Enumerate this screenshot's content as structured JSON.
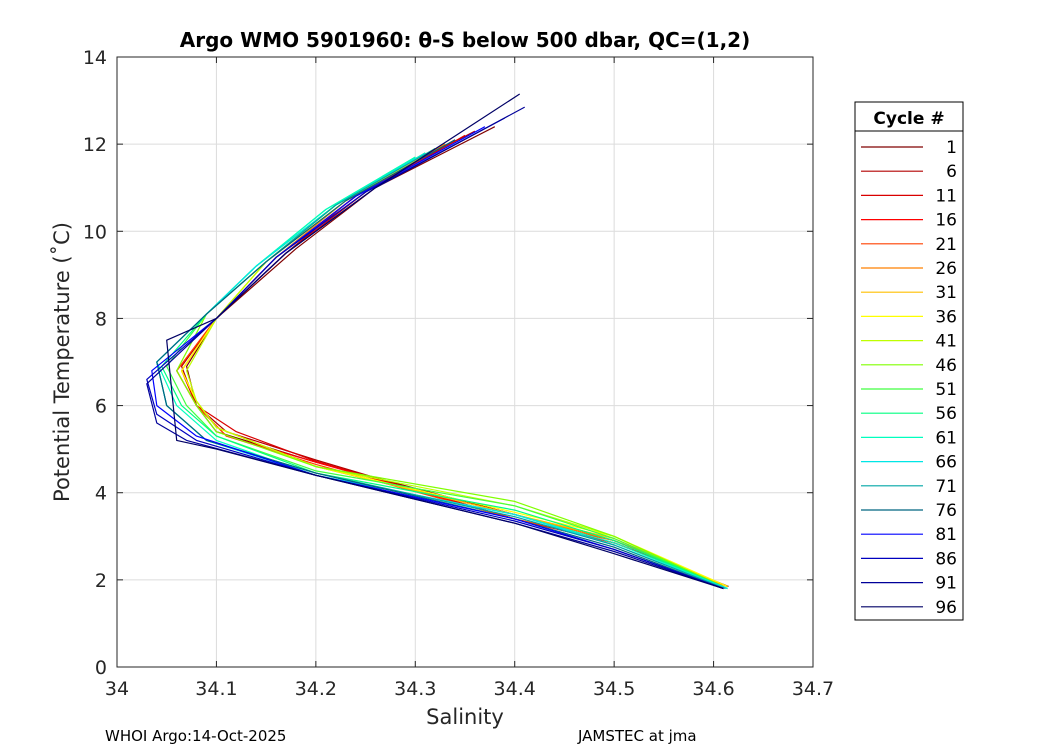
{
  "chart_data": {
    "type": "line",
    "title": "Argo WMO 5901960: θ-S below 500 dbar,  QC=(1,2)",
    "xlabel": "Salinity",
    "ylabel": "Potential Temperature (˚C)",
    "xlim": [
      34.0,
      34.7
    ],
    "ylim": [
      0,
      14
    ],
    "xticks": [
      34,
      34.1,
      34.2,
      34.3,
      34.4,
      34.5,
      34.6,
      34.7
    ],
    "xtick_labels": [
      "34",
      "34.1",
      "34.2",
      "34.3",
      "34.4",
      "34.5",
      "34.6",
      "34.7"
    ],
    "yticks": [
      0,
      2,
      4,
      6,
      8,
      10,
      12,
      14
    ],
    "ytick_labels": [
      "0",
      "2",
      "4",
      "6",
      "8",
      "10",
      "12",
      "14"
    ],
    "grid": true,
    "legend_placement": "outside-right",
    "legend_title": "Cycle #",
    "series": [
      {
        "name": "1",
        "color": "#800000",
        "points": [
          [
            34.38,
            12.4
          ],
          [
            34.26,
            11.0
          ],
          [
            34.18,
            9.6
          ],
          [
            34.1,
            8.0
          ],
          [
            34.07,
            6.9
          ],
          [
            34.08,
            6.0
          ],
          [
            34.1,
            5.4
          ],
          [
            34.2,
            4.7
          ],
          [
            34.4,
            3.5
          ],
          [
            34.5,
            2.9
          ],
          [
            34.615,
            1.85
          ]
        ]
      },
      {
        "name": "6",
        "color": "#b30000",
        "points": [
          [
            34.36,
            12.3
          ],
          [
            34.25,
            11.0
          ],
          [
            34.17,
            9.5
          ],
          [
            34.1,
            8.0
          ],
          [
            34.065,
            6.9
          ],
          [
            34.08,
            6.0
          ],
          [
            34.11,
            5.4
          ],
          [
            34.2,
            4.75
          ],
          [
            34.4,
            3.4
          ],
          [
            34.5,
            2.85
          ],
          [
            34.614,
            1.85
          ]
        ]
      },
      {
        "name": "11",
        "color": "#d90000",
        "points": [
          [
            34.35,
            12.2
          ],
          [
            34.25,
            10.9
          ],
          [
            34.17,
            9.5
          ],
          [
            34.1,
            8.0
          ],
          [
            34.065,
            6.8
          ],
          [
            34.08,
            6.0
          ],
          [
            34.12,
            5.4
          ],
          [
            34.2,
            4.72
          ],
          [
            34.4,
            3.4
          ],
          [
            34.5,
            2.85
          ],
          [
            34.614,
            1.85
          ]
        ]
      },
      {
        "name": "16",
        "color": "#ff0000",
        "points": [
          [
            34.34,
            12.1
          ],
          [
            34.24,
            10.8
          ],
          [
            34.16,
            9.4
          ],
          [
            34.1,
            8.0
          ],
          [
            34.06,
            6.8
          ],
          [
            34.08,
            6.0
          ],
          [
            34.11,
            5.3
          ],
          [
            34.2,
            4.7
          ],
          [
            34.4,
            3.4
          ],
          [
            34.5,
            2.85
          ],
          [
            34.614,
            1.85
          ]
        ]
      },
      {
        "name": "21",
        "color": "#ff4000",
        "points": [
          [
            34.33,
            12.0
          ],
          [
            34.24,
            10.8
          ],
          [
            34.16,
            9.4
          ],
          [
            34.1,
            8.0
          ],
          [
            34.06,
            6.8
          ],
          [
            34.08,
            6.0
          ],
          [
            34.11,
            5.3
          ],
          [
            34.2,
            4.65
          ],
          [
            34.4,
            3.4
          ],
          [
            34.5,
            2.9
          ],
          [
            34.614,
            1.85
          ]
        ]
      },
      {
        "name": "26",
        "color": "#ff8000",
        "points": [
          [
            34.33,
            12.0
          ],
          [
            34.23,
            10.7
          ],
          [
            34.16,
            9.4
          ],
          [
            34.1,
            8.0
          ],
          [
            34.065,
            6.8
          ],
          [
            34.08,
            6.1
          ],
          [
            34.1,
            5.5
          ],
          [
            34.2,
            4.6
          ],
          [
            34.4,
            3.5
          ],
          [
            34.5,
            2.9
          ],
          [
            34.614,
            1.85
          ]
        ]
      },
      {
        "name": "31",
        "color": "#ffbf00",
        "points": [
          [
            34.32,
            11.9
          ],
          [
            34.23,
            10.7
          ],
          [
            34.15,
            9.3
          ],
          [
            34.1,
            8.0
          ],
          [
            34.065,
            6.8
          ],
          [
            34.08,
            6.1
          ],
          [
            34.1,
            5.5
          ],
          [
            34.2,
            4.6
          ],
          [
            34.4,
            3.5
          ],
          [
            34.5,
            2.95
          ],
          [
            34.614,
            1.85
          ]
        ]
      },
      {
        "name": "36",
        "color": "#ffff00",
        "points": [
          [
            34.32,
            11.9
          ],
          [
            34.23,
            10.7
          ],
          [
            34.15,
            9.3
          ],
          [
            34.1,
            8.0
          ],
          [
            34.065,
            6.8
          ],
          [
            34.08,
            6.1
          ],
          [
            34.1,
            5.5
          ],
          [
            34.2,
            4.6
          ],
          [
            34.4,
            3.55
          ],
          [
            34.5,
            3.0
          ],
          [
            34.614,
            1.85
          ]
        ]
      },
      {
        "name": "41",
        "color": "#bfff00",
        "points": [
          [
            34.31,
            11.8
          ],
          [
            34.22,
            10.6
          ],
          [
            34.15,
            9.3
          ],
          [
            34.1,
            8.0
          ],
          [
            34.07,
            6.8
          ],
          [
            34.08,
            6.1
          ],
          [
            34.1,
            5.5
          ],
          [
            34.2,
            4.6
          ],
          [
            34.4,
            3.7
          ],
          [
            34.5,
            3.0
          ],
          [
            34.614,
            1.8
          ]
        ]
      },
      {
        "name": "46",
        "color": "#80ff00",
        "points": [
          [
            34.31,
            11.8
          ],
          [
            34.22,
            10.6
          ],
          [
            34.15,
            9.3
          ],
          [
            34.09,
            8.1
          ],
          [
            34.06,
            6.8
          ],
          [
            34.08,
            6.0
          ],
          [
            34.1,
            5.4
          ],
          [
            34.2,
            4.6
          ],
          [
            34.4,
            3.8
          ],
          [
            34.5,
            3.0
          ],
          [
            34.614,
            1.8
          ]
        ]
      },
      {
        "name": "51",
        "color": "#40ff40",
        "points": [
          [
            34.3,
            11.7
          ],
          [
            34.22,
            10.6
          ],
          [
            34.14,
            9.2
          ],
          [
            34.09,
            8.1
          ],
          [
            34.05,
            6.9
          ],
          [
            34.07,
            6.0
          ],
          [
            34.1,
            5.3
          ],
          [
            34.2,
            4.5
          ],
          [
            34.4,
            3.7
          ],
          [
            34.5,
            2.95
          ],
          [
            34.614,
            1.8
          ]
        ]
      },
      {
        "name": "56",
        "color": "#00ff80",
        "points": [
          [
            34.3,
            11.7
          ],
          [
            34.21,
            10.5
          ],
          [
            34.14,
            9.2
          ],
          [
            34.09,
            8.1
          ],
          [
            34.045,
            6.9
          ],
          [
            34.065,
            6.0
          ],
          [
            34.1,
            5.3
          ],
          [
            34.2,
            4.45
          ],
          [
            34.4,
            3.6
          ],
          [
            34.5,
            2.9
          ],
          [
            34.614,
            1.8
          ]
        ]
      },
      {
        "name": "61",
        "color": "#00ffbf",
        "points": [
          [
            34.3,
            11.7
          ],
          [
            34.21,
            10.5
          ],
          [
            34.14,
            9.2
          ],
          [
            34.09,
            8.1
          ],
          [
            34.04,
            7.0
          ],
          [
            34.06,
            6.0
          ],
          [
            34.1,
            5.2
          ],
          [
            34.2,
            4.4
          ],
          [
            34.4,
            3.5
          ],
          [
            34.5,
            2.85
          ],
          [
            34.614,
            1.8
          ]
        ]
      },
      {
        "name": "66",
        "color": "#00e6e6",
        "points": [
          [
            34.31,
            11.8
          ],
          [
            34.22,
            10.6
          ],
          [
            34.14,
            9.2
          ],
          [
            34.09,
            8.1
          ],
          [
            34.04,
            7.0
          ],
          [
            34.05,
            6.0
          ],
          [
            34.09,
            5.2
          ],
          [
            34.2,
            4.4
          ],
          [
            34.4,
            3.5
          ],
          [
            34.5,
            2.8
          ],
          [
            34.614,
            1.8
          ]
        ]
      },
      {
        "name": "71",
        "color": "#00a6a6",
        "points": [
          [
            34.32,
            11.9
          ],
          [
            34.22,
            10.6
          ],
          [
            34.15,
            9.3
          ],
          [
            34.09,
            8.1
          ],
          [
            34.04,
            7.0
          ],
          [
            34.05,
            6.0
          ],
          [
            34.09,
            5.2
          ],
          [
            34.2,
            4.45
          ],
          [
            34.4,
            3.45
          ],
          [
            34.5,
            2.8
          ],
          [
            34.612,
            1.8
          ]
        ]
      },
      {
        "name": "76",
        "color": "#006680",
        "points": [
          [
            34.34,
            12.1
          ],
          [
            34.23,
            10.7
          ],
          [
            34.15,
            9.3
          ],
          [
            34.09,
            8.1
          ],
          [
            34.04,
            7.0
          ],
          [
            34.05,
            6.0
          ],
          [
            34.09,
            5.2
          ],
          [
            34.2,
            4.45
          ],
          [
            34.4,
            3.4
          ],
          [
            34.5,
            2.75
          ],
          [
            34.61,
            1.8
          ]
        ]
      },
      {
        "name": "81",
        "color": "#0000ff",
        "points": [
          [
            34.37,
            12.4
          ],
          [
            34.24,
            10.8
          ],
          [
            34.16,
            9.4
          ],
          [
            34.1,
            8.0
          ],
          [
            34.035,
            6.8
          ],
          [
            34.04,
            6.0
          ],
          [
            34.08,
            5.3
          ],
          [
            34.2,
            4.4
          ],
          [
            34.4,
            3.4
          ],
          [
            34.5,
            2.7
          ],
          [
            34.61,
            1.8
          ]
        ]
      },
      {
        "name": "86",
        "color": "#0000bf",
        "points": [
          [
            34.39,
            12.6
          ],
          [
            34.25,
            10.9
          ],
          [
            34.16,
            9.4
          ],
          [
            34.1,
            8.0
          ],
          [
            34.03,
            6.6
          ],
          [
            34.04,
            5.8
          ],
          [
            34.08,
            5.2
          ],
          [
            34.2,
            4.4
          ],
          [
            34.4,
            3.35
          ],
          [
            34.5,
            2.7
          ],
          [
            34.61,
            1.8
          ]
        ]
      },
      {
        "name": "91",
        "color": "#000099",
        "points": [
          [
            34.41,
            12.85
          ],
          [
            34.26,
            11.0
          ],
          [
            34.17,
            9.5
          ],
          [
            34.1,
            8.0
          ],
          [
            34.03,
            6.5
          ],
          [
            34.04,
            5.6
          ],
          [
            34.07,
            5.2
          ],
          [
            34.2,
            4.4
          ],
          [
            34.4,
            3.3
          ],
          [
            34.5,
            2.65
          ],
          [
            34.61,
            1.8
          ]
        ]
      },
      {
        "name": "96",
        "color": "#000066",
        "points": [
          [
            34.405,
            13.15
          ],
          [
            34.26,
            11.0
          ],
          [
            34.17,
            9.5
          ],
          [
            34.1,
            8.0
          ],
          [
            34.05,
            7.5
          ],
          [
            34.06,
            5.2
          ],
          [
            34.1,
            5.0
          ],
          [
            34.2,
            4.4
          ],
          [
            34.4,
            3.3
          ],
          [
            34.5,
            2.6
          ],
          [
            34.61,
            1.8
          ]
        ]
      }
    ]
  },
  "footer": {
    "left": "WHOI Argo:14-Oct-2025",
    "right": "JAMSTEC at jma"
  }
}
